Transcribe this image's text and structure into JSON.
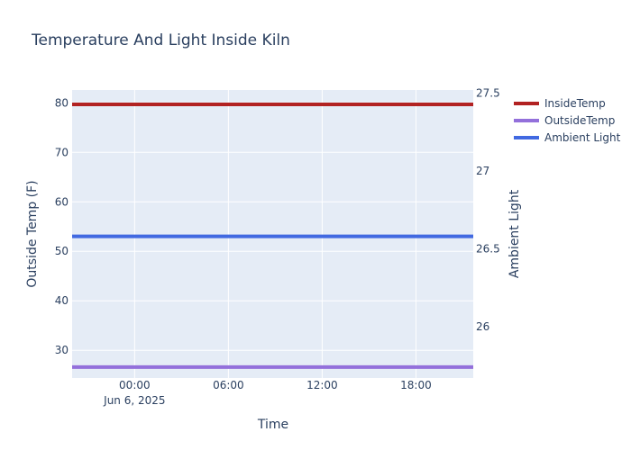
{
  "chart_data": {
    "type": "line",
    "title": "Temperature And Light Inside Kiln",
    "xlabel": "Time",
    "ylabel": "Outside Temp (F)",
    "y2label": "Ambient Light",
    "xlim": [
      "2025-06-05T20:00",
      "2025-06-06T21:40"
    ],
    "ylim": [
      24.4,
      82.6
    ],
    "y2lim": [
      25.67,
      27.52
    ],
    "x_ticks": [
      "00:00",
      "06:00",
      "12:00",
      "18:00"
    ],
    "x_tick_sublabel": "Jun 6, 2025",
    "y_ticks": [
      30,
      40,
      50,
      60,
      70,
      80
    ],
    "y2_ticks": [
      "26",
      "26.5",
      "27",
      "27.5"
    ],
    "grid": true,
    "legend_position": "top-right",
    "series": [
      {
        "name": "InsideTemp",
        "color": "#b22222",
        "axis": "y",
        "x": [
          "2025-06-05T20:00",
          "2025-06-06T21:40"
        ],
        "values": [
          79.7,
          79.7
        ]
      },
      {
        "name": "OutsideTemp",
        "color": "#9370db",
        "axis": "y",
        "x": [
          "2025-06-05T20:00",
          "2025-06-06T21:40"
        ],
        "values": [
          26.6,
          26.6
        ]
      },
      {
        "name": "Ambient Light",
        "color": "#4169e1",
        "axis": "y2",
        "x": [
          "2025-06-05T20:00",
          "2025-06-06T21:40"
        ],
        "values": [
          26.58,
          26.58
        ]
      }
    ]
  }
}
